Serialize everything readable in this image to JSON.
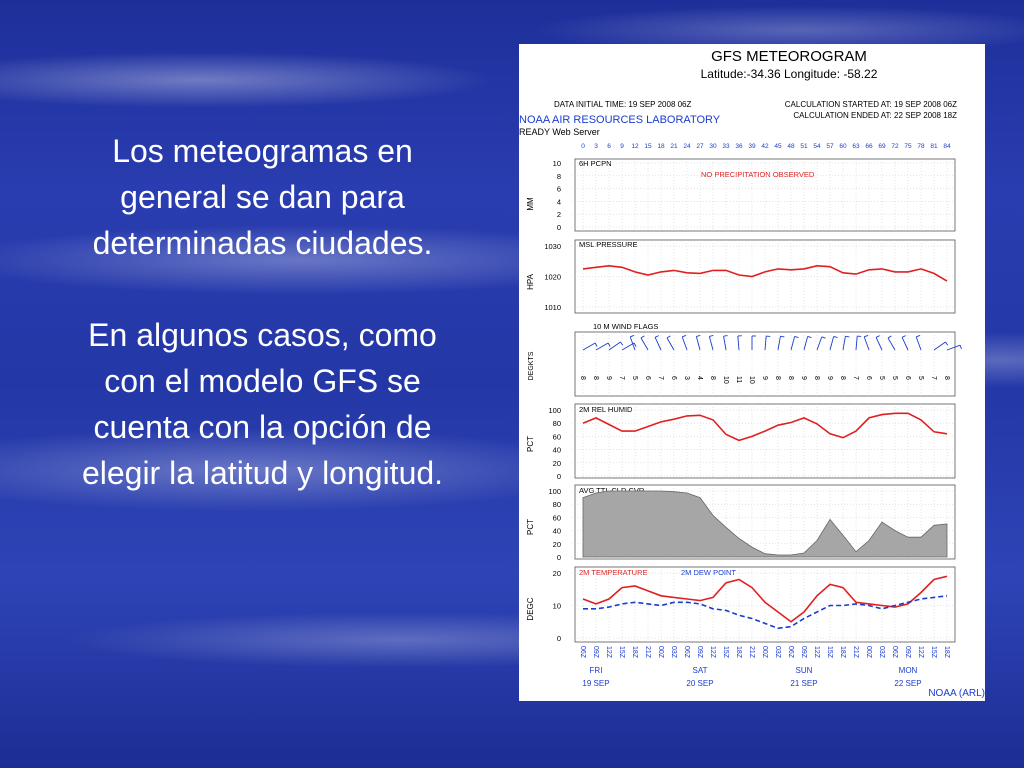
{
  "slide": {
    "paragraph_1": "Los meteogramas en general se dan para determinadas ciudades.",
    "paragraph_2": "En algunos casos, como con el modelo GFS se cuenta con la opción de elegir la latitud y longitud."
  },
  "chart_data": {
    "type": "line",
    "title": "GFS METEOROGRAM",
    "subtitle": "Latitude:-34.36 Longitude: -58.22",
    "data_initial_time": "DATA INITIAL TIME: 19 SEP 2008 06Z",
    "calc_started": "CALCULATION STARTED AT: 19 SEP 2008 06Z",
    "calc_ended": "CALCULATION ENDED AT: 22 SEP 2008 18Z",
    "lab_name": "NOAA AIR RESOURCES LABORATORY",
    "server_name": "READY Web Server",
    "footer": "NOAA (ARL)",
    "forecast_hours": [
      "0",
      "3",
      "6",
      "9",
      "12",
      "15",
      "18",
      "21",
      "24",
      "27",
      "30",
      "33",
      "36",
      "39",
      "42",
      "45",
      "48",
      "51",
      "54",
      "57",
      "60",
      "63",
      "66",
      "69",
      "72",
      "75",
      "78",
      "81",
      "84"
    ],
    "time_labels": [
      "06Z",
      "09Z",
      "12Z",
      "15Z",
      "18Z",
      "21Z",
      "00Z",
      "03Z",
      "06Z",
      "09Z",
      "12Z",
      "15Z",
      "18Z",
      "21Z",
      "00Z",
      "03Z",
      "06Z",
      "09Z",
      "12Z",
      "15Z",
      "18Z",
      "21Z",
      "00Z",
      "03Z",
      "06Z",
      "09Z",
      "12Z",
      "15Z",
      "18Z"
    ],
    "days": [
      {
        "day": "FRI",
        "date": "19 SEP"
      },
      {
        "day": "SAT",
        "date": "20 SEP"
      },
      {
        "day": "SUN",
        "date": "21 SEP"
      },
      {
        "day": "MON",
        "date": "22 SEP"
      }
    ],
    "panels": [
      {
        "id": "precip",
        "label": "6H PCPN",
        "ylabel": "MM",
        "yticks": [
          "10",
          "8",
          "6",
          "4",
          "2",
          "0"
        ],
        "ylim": [
          0,
          10
        ],
        "note": "NO PRECIPITATION OBSERVED"
      },
      {
        "id": "pressure",
        "label": "MSL PRESSURE",
        "ylabel": "HPA",
        "yticks": [
          "1030",
          "1020",
          "1010"
        ],
        "ylim": [
          1010,
          1030
        ],
        "color": "#e02020",
        "values": [
          1022.5,
          1023,
          1023.5,
          1023,
          1021.5,
          1020.5,
          1021.5,
          1022,
          1021.2,
          1021,
          1022,
          1022,
          1020.5,
          1020,
          1021.5,
          1022.5,
          1022.2,
          1022.5,
          1023.5,
          1023.2,
          1021.2,
          1020.8,
          1022.2,
          1022.5,
          1021.5,
          1021.5,
          1022.5,
          1021,
          1018.5
        ]
      },
      {
        "id": "wind",
        "label": "10 M  WIND FLAGS",
        "ylabel": "DEGKTS",
        "speeds": [
          "8",
          "8",
          "9",
          "7",
          "5",
          "6",
          "7",
          "6",
          "3",
          "4",
          "8",
          "10",
          "11",
          "10",
          "9",
          "8",
          "8",
          "9",
          "8",
          "9",
          "8",
          "7",
          "6",
          "5",
          "5",
          "6",
          "5",
          "7",
          "8"
        ],
        "directions": [
          60,
          60,
          55,
          60,
          340,
          330,
          335,
          330,
          340,
          345,
          345,
          350,
          355,
          0,
          5,
          10,
          15,
          15,
          20,
          15,
          10,
          5,
          340,
          335,
          330,
          335,
          340,
          55,
          70
        ]
      },
      {
        "id": "rh",
        "label": "2M REL HUMID",
        "ylabel": "PCT",
        "yticks": [
          "100",
          "80",
          "60",
          "40",
          "20",
          "0"
        ],
        "ylim": [
          0,
          100
        ],
        "color": "#e02020",
        "values": [
          80,
          88,
          78,
          68,
          68,
          75,
          82,
          86,
          91,
          92,
          85,
          63,
          54,
          60,
          68,
          77,
          81,
          88,
          79,
          64,
          58,
          68,
          88,
          93,
          95,
          95,
          85,
          67,
          64
        ]
      },
      {
        "id": "cloud",
        "label": "AVG TTL CLD CVR",
        "ylabel": "PCT",
        "yticks": [
          "100",
          "80",
          "60",
          "40",
          "20",
          "0"
        ],
        "ylim": [
          0,
          100
        ],
        "color": "#999999",
        "values": [
          90,
          97,
          100,
          100,
          100,
          100,
          100,
          99,
          97,
          90,
          63,
          45,
          28,
          15,
          5,
          3,
          3,
          6,
          25,
          57,
          33,
          8,
          25,
          53,
          40,
          30,
          30,
          48,
          50
        ]
      },
      {
        "id": "temp",
        "label": "2M TEMPERATURE",
        "label2": "2M   DEW POINT",
        "ylabel": "DEGC",
        "yticks": [
          "20",
          "10",
          "0"
        ],
        "ylim": [
          0,
          20
        ],
        "series": [
          {
            "name": "2M TEMPERATURE",
            "color": "#e02020",
            "dash": false,
            "values": [
              12,
              10.5,
              12,
              15.5,
              16,
              14.5,
              13,
              12.5,
              12,
              11.5,
              12.5,
              17,
              18,
              15.5,
              11,
              8,
              5,
              8,
              13,
              16.5,
              15.5,
              11,
              10.5,
              10,
              9.5,
              10.5,
              14,
              18,
              19
            ]
          },
          {
            "name": "2M   DEW POINT",
            "color": "#1a3ccf",
            "dash": true,
            "values": [
              9,
              9,
              9.5,
              10.5,
              11,
              10.5,
              10,
              11,
              11,
              10.5,
              9,
              8.5,
              7,
              6,
              4.5,
              3,
              3.5,
              6,
              8,
              10,
              10,
              10.5,
              10,
              9,
              10,
              11,
              12,
              12.5,
              13
            ]
          }
        ]
      }
    ]
  }
}
